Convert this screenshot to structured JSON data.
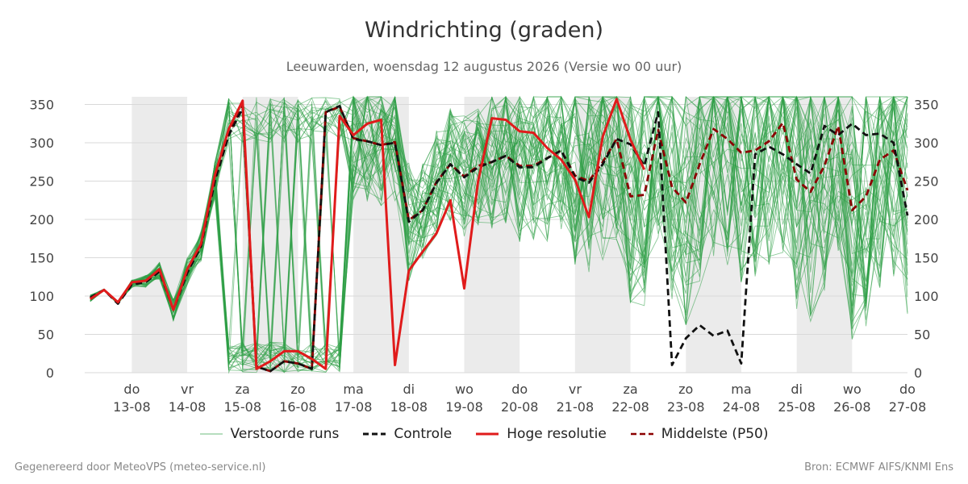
{
  "chart_data": {
    "type": "line",
    "title": "Windrichting (graden)",
    "subtitle": "Leeuwarden, woensdag 12 augustus 2026 (Versie wo 00 uur)",
    "y_range": [
      0,
      360
    ],
    "x_range": [
      -0.85,
      14
    ],
    "y_ticks": [
      0,
      50,
      100,
      150,
      200,
      250,
      300,
      350
    ],
    "grid": "horizontal",
    "legend_position": "bottom",
    "x_ticks": [
      {
        "x": 0,
        "day": "do",
        "date": "13-08"
      },
      {
        "x": 1,
        "day": "vr",
        "date": "14-08"
      },
      {
        "x": 2,
        "day": "za",
        "date": "15-08"
      },
      {
        "x": 3,
        "day": "zo",
        "date": "16-08"
      },
      {
        "x": 4,
        "day": "ma",
        "date": "17-08"
      },
      {
        "x": 5,
        "day": "di",
        "date": "18-08"
      },
      {
        "x": 6,
        "day": "wo",
        "date": "19-08"
      },
      {
        "x": 7,
        "day": "do",
        "date": "20-08"
      },
      {
        "x": 8,
        "day": "vr",
        "date": "21-08"
      },
      {
        "x": 9,
        "day": "za",
        "date": "22-08"
      },
      {
        "x": 10,
        "day": "zo",
        "date": "23-08"
      },
      {
        "x": 11,
        "day": "ma",
        "date": "24-08"
      },
      {
        "x": 12,
        "day": "di",
        "date": "25-08"
      },
      {
        "x": 13,
        "day": "wo",
        "date": "26-08"
      },
      {
        "x": 14,
        "day": "do",
        "date": "27-08"
      }
    ],
    "shaded_days": [
      [
        0,
        1
      ],
      [
        2,
        3
      ],
      [
        4,
        5
      ],
      [
        6,
        7
      ],
      [
        8,
        9
      ],
      [
        10,
        11
      ],
      [
        12,
        13
      ]
    ],
    "series": [
      {
        "name": "Controle",
        "color": "#111111",
        "style": "dashed",
        "x": [
          -0.75,
          -0.5,
          -0.25,
          0,
          0.25,
          0.5,
          0.75,
          1,
          1.25,
          1.5,
          1.75,
          2,
          2.25,
          2.5,
          2.75,
          3,
          3.25,
          3.5,
          3.75,
          4,
          4.25,
          4.5,
          4.75,
          5,
          5.25,
          5.5,
          5.75,
          6,
          6.25,
          6.5,
          6.75,
          7,
          7.25,
          7.5,
          7.75,
          8,
          8.25,
          8.5,
          8.75,
          9,
          9.25,
          9.5,
          9.75,
          10,
          10.25,
          10.5,
          10.75,
          11,
          11.25,
          11.5,
          11.75,
          12,
          12.25,
          12.5,
          12.75,
          13,
          13.25,
          13.5,
          13.75,
          14
        ],
        "y": [
          98,
          108,
          90,
          115,
          118,
          132,
          82,
          130,
          165,
          250,
          310,
          345,
          8,
          2,
          15,
          12,
          5,
          340,
          348,
          305,
          302,
          297,
          300,
          197,
          212,
          248,
          272,
          255,
          268,
          275,
          283,
          268,
          268,
          280,
          290,
          255,
          248,
          272,
          305,
          298,
          270,
          340,
          10,
          45,
          62,
          48,
          55,
          12,
          285,
          295,
          285,
          272,
          260,
          322,
          310,
          325,
          310,
          312,
          300,
          205
        ]
      },
      {
        "name": "Hoge resolutie",
        "color": "#e01b1b",
        "style": "solid",
        "x": [
          -0.75,
          -0.5,
          -0.25,
          0,
          0.25,
          0.5,
          0.75,
          1,
          1.25,
          1.5,
          1.75,
          2,
          2.25,
          2.5,
          2.75,
          3,
          3.25,
          3.5,
          3.75,
          4,
          4.25,
          4.5,
          4.75,
          5,
          5.25,
          5.5,
          5.75,
          6,
          6.25,
          6.5,
          6.75,
          7,
          7.25,
          7.5,
          7.75,
          8,
          8.25,
          8.5,
          8.75,
          9,
          9.25
        ],
        "y": [
          96,
          108,
          92,
          118,
          120,
          135,
          82,
          135,
          168,
          258,
          318,
          355,
          5,
          15,
          28,
          28,
          18,
          5,
          335,
          310,
          325,
          330,
          10,
          133,
          158,
          182,
          225,
          110,
          250,
          332,
          330,
          315,
          313,
          293,
          278,
          252,
          203,
          308,
          357,
          304,
          265
        ]
      },
      {
        "name": "Middelste (P50)",
        "color": "#8b0000",
        "style": "dashed",
        "x": [
          -0.75,
          -0.5,
          -0.25,
          0,
          0.25,
          0.5,
          0.75,
          1,
          1.25,
          1.5,
          1.75,
          2,
          2.25,
          2.5,
          2.75,
          3,
          3.25,
          3.5,
          3.75,
          4,
          4.25,
          4.5,
          4.75,
          5,
          5.25,
          5.5,
          5.75,
          6,
          6.25,
          6.5,
          6.75,
          7,
          7.25,
          7.5,
          7.75,
          8,
          8.25,
          8.5,
          8.75,
          9,
          9.25,
          9.5,
          9.75,
          10,
          10.25,
          10.5,
          10.75,
          11,
          11.25,
          11.5,
          11.75,
          12,
          12.25,
          12.5,
          12.75,
          13,
          13.25,
          13.5,
          13.75,
          14
        ],
        "y": [
          97,
          108,
          91,
          116,
          119,
          133,
          82,
          132,
          166,
          252,
          312,
          348,
          8,
          2,
          15,
          12,
          5,
          340,
          347,
          306,
          302,
          297,
          301,
          199,
          212,
          249,
          272,
          256,
          270,
          275,
          283,
          270,
          270,
          280,
          290,
          257,
          250,
          275,
          305,
          230,
          232,
          317,
          242,
          222,
          272,
          318,
          305,
          287,
          290,
          302,
          326,
          252,
          236,
          270,
          322,
          212,
          230,
          278,
          290,
          238
        ]
      }
    ],
    "legend": [
      {
        "label": "Verstoorde runs",
        "color": "#2e9e45",
        "style": "thin"
      },
      {
        "label": "Controle",
        "color": "#111111",
        "style": "dashed"
      },
      {
        "label": "Hoge resolutie",
        "color": "#e01b1b",
        "style": "solid"
      },
      {
        "label": "Middelste (P50)",
        "color": "#8b0000",
        "style": "dashed"
      }
    ],
    "ensemble": {
      "name": "Verstoorde runs",
      "color": "#2e9e45",
      "count": 50
    }
  },
  "footer": {
    "left": "Gegenereerd door MeteoVPS (meteo-service.nl)",
    "right": "Bron: ECMWF AIFS/KNMI Ens"
  }
}
